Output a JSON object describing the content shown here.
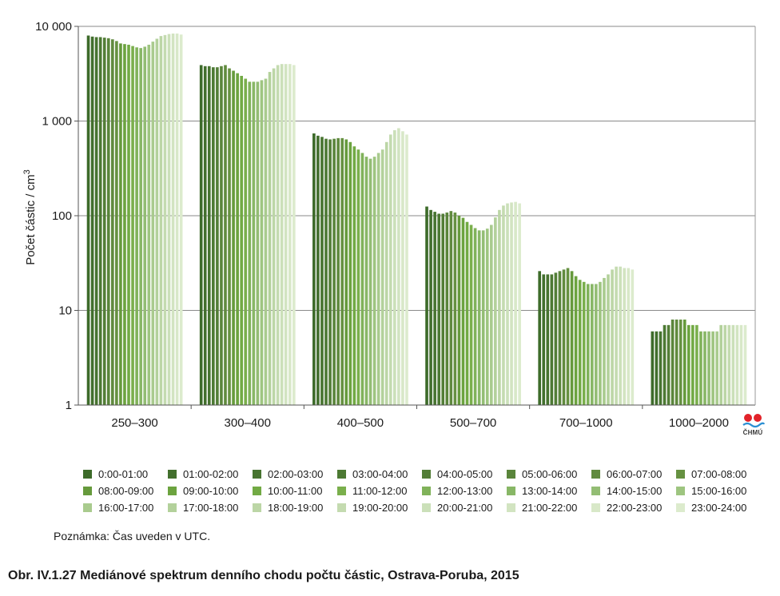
{
  "chart_data": {
    "type": "bar",
    "y_scale": "log",
    "ylabel": "Počet částic / cm",
    "ylabel_sup": "3",
    "ylim": [
      1,
      10000
    ],
    "y_ticks": [
      {
        "value": 1,
        "label": "1"
      },
      {
        "value": 10,
        "label": "10"
      },
      {
        "value": 100,
        "label": "100"
      },
      {
        "value": 1000,
        "label": "1 000"
      },
      {
        "value": 10000,
        "label": "10 000"
      }
    ],
    "grid": true,
    "legend_position": "bottom",
    "categories": [
      "250–300",
      "300–400",
      "400–500",
      "500–700",
      "700–1000",
      "1000–2000"
    ],
    "series_names": [
      "0:00-01:00",
      "01:00-02:00",
      "02:00-03:00",
      "03:00-04:00",
      "04:00-05:00",
      "05:00-06:00",
      "06:00-07:00",
      "07:00-08:00",
      "08:00-09:00",
      "09:00-10:00",
      "10:00-11:00",
      "11:00-12:00",
      "12:00-13:00",
      "13:00-14:00",
      "14:00-15:00",
      "15:00-16:00",
      "16:00-17:00",
      "17:00-18:00",
      "18:00-19:00",
      "19:00-20:00",
      "20:00-21:00",
      "21:00-22:00",
      "22:00-23:00",
      "23:00-24:00"
    ],
    "series_colors": [
      "#3d6b2a",
      "#426f2d",
      "#477430",
      "#4c7933",
      "#537e37",
      "#5a853b",
      "#608a3e",
      "#669141",
      "#669a3c",
      "#6ca33f",
      "#72aa44",
      "#7aaf4c",
      "#80b25a",
      "#88b766",
      "#93bd74",
      "#9ec580",
      "#a9cb8e",
      "#b3d19b",
      "#bcd6a6",
      "#c4dbb0",
      "#cbe0b9",
      "#d2e4c1",
      "#d8e8c8",
      "#dcebcd"
    ],
    "values": [
      [
        8000,
        7800,
        7700,
        7700,
        7600,
        7500,
        7300,
        7000,
        6600,
        6500,
        6400,
        6200,
        6000,
        5900,
        6100,
        6400,
        6900,
        7400,
        7900,
        8100,
        8300,
        8400,
        8400,
        8200
      ],
      [
        3900,
        3800,
        3800,
        3700,
        3700,
        3800,
        3900,
        3600,
        3400,
        3200,
        3000,
        2800,
        2600,
        2600,
        2600,
        2700,
        2800,
        3300,
        3600,
        3900,
        4000,
        4000,
        4000,
        3900
      ],
      [
        740,
        700,
        680,
        650,
        640,
        650,
        660,
        660,
        640,
        600,
        540,
        500,
        460,
        420,
        400,
        420,
        460,
        500,
        600,
        720,
        800,
        840,
        780,
        720
      ],
      [
        125,
        115,
        110,
        105,
        105,
        108,
        112,
        108,
        100,
        95,
        86,
        80,
        74,
        70,
        70,
        73,
        80,
        96,
        115,
        128,
        135,
        138,
        140,
        135
      ],
      [
        26,
        24,
        24,
        24,
        25,
        26,
        27,
        28,
        26,
        23,
        21,
        20,
        19,
        19,
        19,
        20,
        22,
        24,
        27,
        29,
        29,
        28,
        28,
        27
      ],
      [
        6,
        6,
        6,
        7,
        7,
        8,
        8,
        8,
        8,
        7,
        7,
        7,
        6,
        6,
        6,
        6,
        6,
        7,
        7,
        7,
        7,
        7,
        7,
        7
      ]
    ]
  },
  "note": "Poznámka: Čas uveden v UTC.",
  "caption": "Obr. IV.1.27  Mediánové spektrum denního chodu počtu částic, Ostrava-Poruba, 2015",
  "logo": {
    "text": "ČHMÚ",
    "dot_color": "#e2232a",
    "wave_color": "#2b8fd3"
  }
}
